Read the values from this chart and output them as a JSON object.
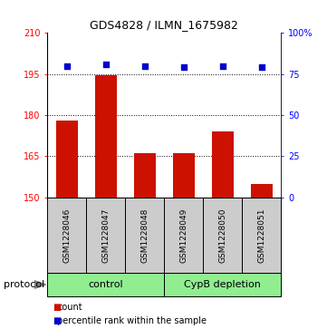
{
  "title": "GDS4828 / ILMN_1675982",
  "samples": [
    "GSM1228046",
    "GSM1228047",
    "GSM1228048",
    "GSM1228049",
    "GSM1228050",
    "GSM1228051"
  ],
  "bar_values": [
    178,
    194.5,
    166,
    166,
    174,
    155
  ],
  "percentile_values": [
    80,
    81,
    80,
    79,
    80,
    79
  ],
  "bar_bottom": 150,
  "ylim_left": [
    150,
    210
  ],
  "ylim_right": [
    0,
    100
  ],
  "yticks_left": [
    150,
    165,
    180,
    195,
    210
  ],
  "yticks_right": [
    0,
    25,
    50,
    75,
    100
  ],
  "ytick_labels_right": [
    "0",
    "25",
    "50",
    "75",
    "100%"
  ],
  "hlines": [
    165,
    180,
    195
  ],
  "bar_color": "#cc1100",
  "percentile_color": "#0000cc",
  "group1_label": "control",
  "group2_label": "CypB depletion",
  "group1_indices": [
    0,
    1,
    2
  ],
  "group2_indices": [
    3,
    4,
    5
  ],
  "group_bg_color": "#90ee90",
  "sample_bg_color": "#cccccc",
  "protocol_label": "protocol",
  "legend_count_label": "count",
  "legend_percentile_label": "percentile rank within the sample",
  "bar_width": 0.55,
  "title_fontsize": 9,
  "tick_fontsize": 7,
  "sample_fontsize": 6.5,
  "group_fontsize": 8,
  "legend_fontsize": 7
}
